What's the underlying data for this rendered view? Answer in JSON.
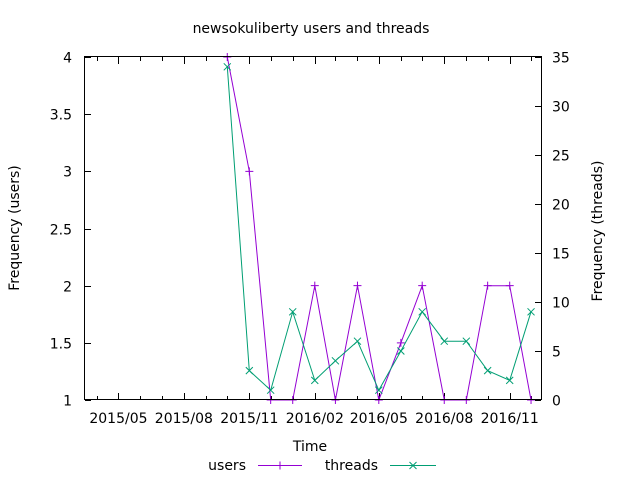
{
  "chart_data": {
    "type": "line",
    "title": "newsokuliberty users and threads",
    "xlabel": "Time",
    "ylabel": "Frequency (users)",
    "y2label": "Frequency (threads)",
    "x_ticks": [
      "2015/05",
      "2015/08",
      "2015/11",
      "2016/02",
      "2016/05",
      "2016/08",
      "2016/11"
    ],
    "ylim": [
      1,
      4
    ],
    "y_ticks": [
      "1",
      "1.5",
      "2",
      "2.5",
      "3",
      "3.5",
      "4"
    ],
    "y2lim": [
      0,
      35
    ],
    "y2_ticks": [
      "0",
      "5",
      "10",
      "15",
      "20",
      "25",
      "30",
      "35"
    ],
    "x_range": [
      "2015-03-15",
      "2016-12-15"
    ],
    "grid": false,
    "legend_position": "bottom",
    "series": [
      {
        "name": "users",
        "axis": "left",
        "color": "#9400d3",
        "marker": "plus",
        "x": [
          "2015-10-01",
          "2015-11-01",
          "2015-12-01",
          "2016-01-01",
          "2016-02-01",
          "2016-03-01",
          "2016-04-01",
          "2016-05-01",
          "2016-06-01",
          "2016-07-01",
          "2016-08-01",
          "2016-09-01",
          "2016-10-01",
          "2016-11-01",
          "2016-12-01"
        ],
        "values": [
          4,
          3,
          1,
          1,
          2,
          1,
          2,
          1,
          1.5,
          2,
          1,
          1,
          2,
          2,
          1
        ]
      },
      {
        "name": "threads",
        "axis": "right",
        "color": "#009e73",
        "marker": "x",
        "x": [
          "2015-10-01",
          "2015-11-01",
          "2015-12-01",
          "2016-01-01",
          "2016-02-01",
          "2016-03-01",
          "2016-04-01",
          "2016-05-01",
          "2016-06-01",
          "2016-07-01",
          "2016-08-01",
          "2016-09-01",
          "2016-10-01",
          "2016-11-01",
          "2016-12-01"
        ],
        "values": [
          34,
          3,
          1,
          9,
          2,
          4,
          6,
          1,
          5,
          9,
          6,
          6,
          3,
          2,
          9
        ]
      }
    ]
  }
}
